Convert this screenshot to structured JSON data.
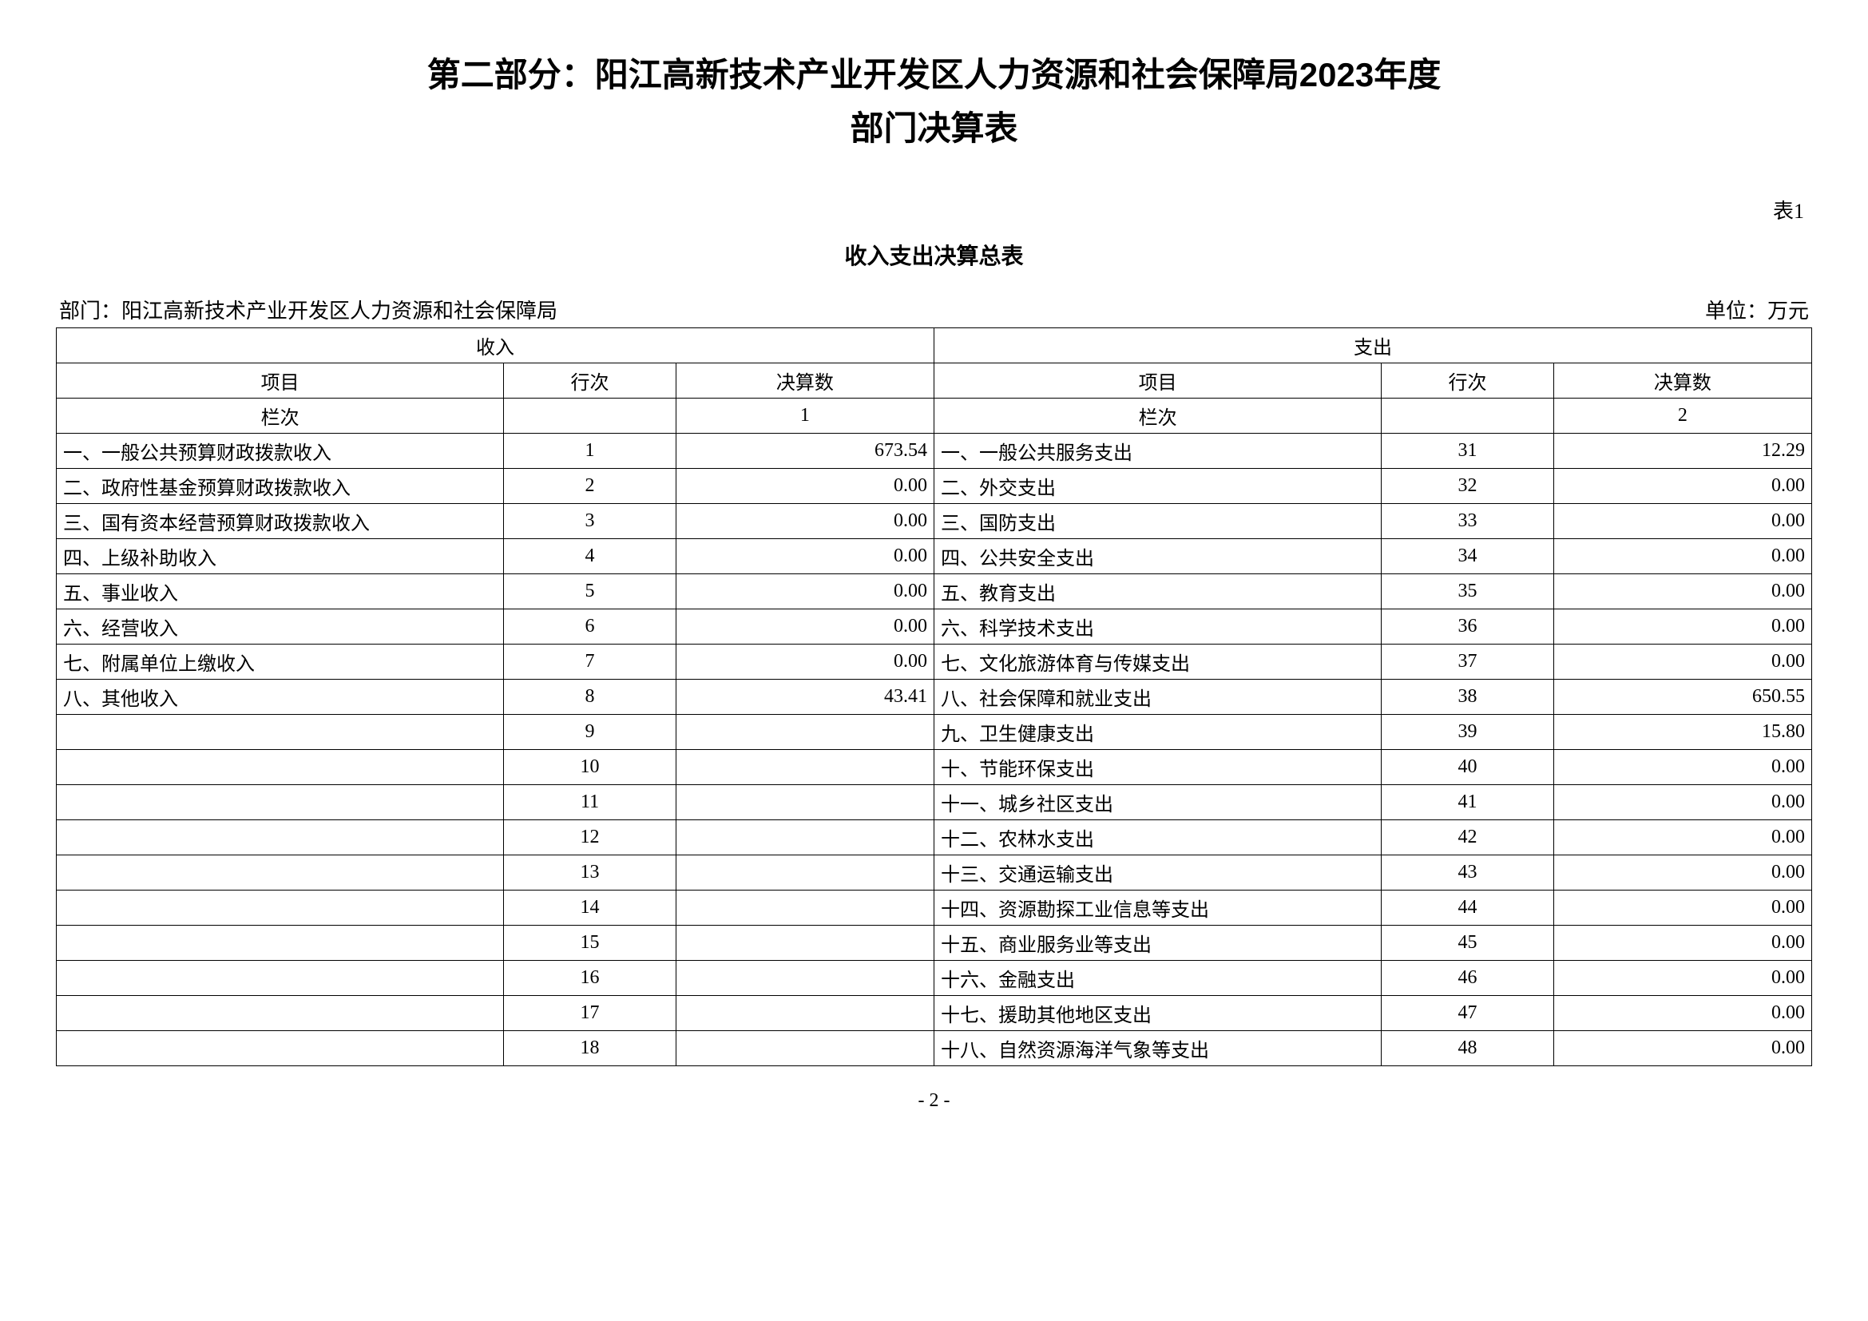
{
  "title_line1": "第二部分：阳江高新技术产业开发区人力资源和社会保障局2023年度",
  "title_line2": "部门决算表",
  "table_number": "表1",
  "subtitle": "收入支出决算总表",
  "dept_label": "部门：阳江高新技术产业开发区人力资源和社会保障局",
  "unit_label": "单位：万元",
  "header": {
    "income": "收入",
    "expense": "支出",
    "item": "项目",
    "line": "行次",
    "amount": "决算数",
    "colnum": "栏次",
    "col1": "1",
    "col2": "2"
  },
  "rows": [
    {
      "ii": "一、一般公共预算财政拨款收入",
      "il": "1",
      "ia": "673.54",
      "ei": "一、一般公共服务支出",
      "el": "31",
      "ea": "12.29"
    },
    {
      "ii": "二、政府性基金预算财政拨款收入",
      "il": "2",
      "ia": "0.00",
      "ei": "二、外交支出",
      "el": "32",
      "ea": "0.00"
    },
    {
      "ii": "三、国有资本经营预算财政拨款收入",
      "il": "3",
      "ia": "0.00",
      "ei": "三、国防支出",
      "el": "33",
      "ea": "0.00"
    },
    {
      "ii": "四、上级补助收入",
      "il": "4",
      "ia": "0.00",
      "ei": "四、公共安全支出",
      "el": "34",
      "ea": "0.00"
    },
    {
      "ii": "五、事业收入",
      "il": "5",
      "ia": "0.00",
      "ei": "五、教育支出",
      "el": "35",
      "ea": "0.00"
    },
    {
      "ii": "六、经营收入",
      "il": "6",
      "ia": "0.00",
      "ei": "六、科学技术支出",
      "el": "36",
      "ea": "0.00"
    },
    {
      "ii": "七、附属单位上缴收入",
      "il": "7",
      "ia": "0.00",
      "ei": "七、文化旅游体育与传媒支出",
      "el": "37",
      "ea": "0.00"
    },
    {
      "ii": "八、其他收入",
      "il": "8",
      "ia": "43.41",
      "ei": "八、社会保障和就业支出",
      "el": "38",
      "ea": "650.55"
    },
    {
      "ii": "",
      "il": "9",
      "ia": "",
      "ei": "九、卫生健康支出",
      "el": "39",
      "ea": "15.80"
    },
    {
      "ii": "",
      "il": "10",
      "ia": "",
      "ei": "十、节能环保支出",
      "el": "40",
      "ea": "0.00"
    },
    {
      "ii": "",
      "il": "11",
      "ia": "",
      "ei": "十一、城乡社区支出",
      "el": "41",
      "ea": "0.00"
    },
    {
      "ii": "",
      "il": "12",
      "ia": "",
      "ei": "十二、农林水支出",
      "el": "42",
      "ea": "0.00"
    },
    {
      "ii": "",
      "il": "13",
      "ia": "",
      "ei": "十三、交通运输支出",
      "el": "43",
      "ea": "0.00"
    },
    {
      "ii": "",
      "il": "14",
      "ia": "",
      "ei": "十四、资源勘探工业信息等支出",
      "el": "44",
      "ea": "0.00"
    },
    {
      "ii": "",
      "il": "15",
      "ia": "",
      "ei": "十五、商业服务业等支出",
      "el": "45",
      "ea": "0.00"
    },
    {
      "ii": "",
      "il": "16",
      "ia": "",
      "ei": "十六、金融支出",
      "el": "46",
      "ea": "0.00"
    },
    {
      "ii": "",
      "il": "17",
      "ia": "",
      "ei": "十七、援助其他地区支出",
      "el": "47",
      "ea": "0.00"
    },
    {
      "ii": "",
      "il": "18",
      "ia": "",
      "ei": "十八、自然资源海洋气象等支出",
      "el": "48",
      "ea": "0.00"
    }
  ],
  "page_number": "- 2 -"
}
